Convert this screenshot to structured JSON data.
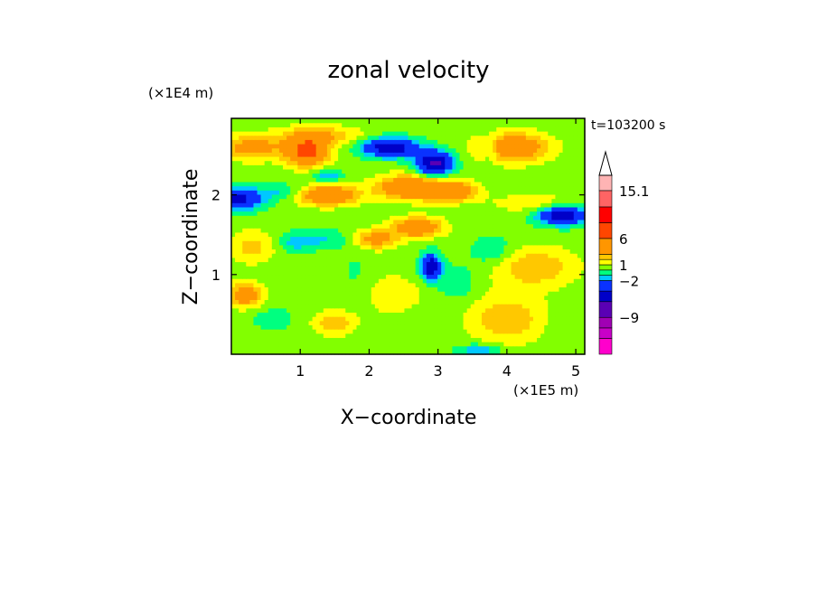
{
  "chart_data": {
    "type": "heatmap",
    "title": "zonal velocity",
    "xlabel": "X−coordinate",
    "ylabel": "Z−coordinate",
    "x_unit": "(×1E5 m)",
    "y_unit": "(×1E4 m)",
    "time_label": "t=103200 s",
    "xlim": [
      0,
      5.13
    ],
    "ylim": [
      0,
      2.96
    ],
    "x_ticks": [
      {
        "value": 1,
        "label": "1"
      },
      {
        "value": 2,
        "label": "2"
      },
      {
        "value": 3,
        "label": "3"
      },
      {
        "value": 4,
        "label": "4"
      },
      {
        "value": 5,
        "label": "5"
      }
    ],
    "y_ticks": [
      {
        "value": 1,
        "label": "1"
      },
      {
        "value": 2,
        "label": "2"
      }
    ],
    "colorbar": {
      "min": -16,
      "max": 18,
      "levels": [
        {
          "lo": -16,
          "hi": -13,
          "color": "#ff00cc"
        },
        {
          "lo": -13,
          "hi": -11,
          "color": "#c800c8"
        },
        {
          "lo": -11,
          "hi": -9,
          "color": "#a000b4"
        },
        {
          "lo": -9,
          "hi": -6,
          "color": "#5a00b4"
        },
        {
          "lo": -6,
          "hi": -4,
          "color": "#0000c8"
        },
        {
          "lo": -4,
          "hi": -2,
          "color": "#0a32ff"
        },
        {
          "lo": -2,
          "hi": -1,
          "color": "#00c8ff"
        },
        {
          "lo": -1,
          "hi": 0,
          "color": "#00ff80"
        },
        {
          "lo": 0,
          "hi": 1,
          "color": "#82ff00"
        },
        {
          "lo": 1,
          "hi": 2,
          "color": "#ffff00"
        },
        {
          "lo": 2,
          "hi": 3,
          "color": "#ffc800"
        },
        {
          "lo": 3,
          "hi": 6,
          "color": "#ff9600"
        },
        {
          "lo": 6,
          "hi": 9,
          "color": "#ff4600"
        },
        {
          "lo": 9,
          "hi": 12,
          "color": "#ff0000"
        },
        {
          "lo": 12,
          "hi": 15.1,
          "color": "#ff6464"
        },
        {
          "lo": 15.1,
          "hi": 18,
          "color": "#ffb4b4"
        }
      ],
      "labels": [
        {
          "value": 15.1,
          "label": "15.1"
        },
        {
          "value": 6,
          "label": "6"
        },
        {
          "value": 1,
          "label": "1"
        },
        {
          "value": -2,
          "label": "−2"
        },
        {
          "value": -9,
          "label": "−9"
        }
      ],
      "extend_max": true
    },
    "blobs": [
      {
        "x": 0.3,
        "z": 2.6,
        "rx": 0.45,
        "rz": 0.15,
        "v": 3.5
      },
      {
        "x": 1.1,
        "z": 2.55,
        "rx": 0.3,
        "rz": 0.18,
        "v": 6.5
      },
      {
        "x": 1.3,
        "z": 2.75,
        "rx": 0.6,
        "rz": 0.12,
        "v": 2.5
      },
      {
        "x": 0.1,
        "z": 1.95,
        "rx": 0.35,
        "rz": 0.13,
        "v": -5
      },
      {
        "x": 0.7,
        "z": 2.05,
        "rx": 0.35,
        "rz": 0.1,
        "v": -1.5
      },
      {
        "x": 2.3,
        "z": 2.6,
        "rx": 0.4,
        "rz": 0.12,
        "v": -6
      },
      {
        "x": 2.95,
        "z": 2.4,
        "rx": 0.25,
        "rz": 0.15,
        "v": -7
      },
      {
        "x": 1.4,
        "z": 2.0,
        "rx": 0.4,
        "rz": 0.12,
        "v": 5.5
      },
      {
        "x": 2.6,
        "z": 2.1,
        "rx": 0.5,
        "rz": 0.15,
        "v": 5
      },
      {
        "x": 3.2,
        "z": 2.05,
        "rx": 0.35,
        "rz": 0.12,
        "v": 4.5
      },
      {
        "x": 1.4,
        "z": 2.25,
        "rx": 0.2,
        "rz": 0.08,
        "v": -2.5
      },
      {
        "x": 4.8,
        "z": 1.75,
        "rx": 0.35,
        "rz": 0.12,
        "v": -6
      },
      {
        "x": 4.1,
        "z": 2.6,
        "rx": 0.5,
        "rz": 0.18,
        "v": 4.5
      },
      {
        "x": 3.75,
        "z": 2.6,
        "rx": 0.12,
        "rz": 0.15,
        "v": -2
      },
      {
        "x": 4.4,
        "z": 1.9,
        "rx": 0.6,
        "rz": 0.12,
        "v": 1.5
      },
      {
        "x": 0.3,
        "z": 1.35,
        "rx": 0.35,
        "rz": 0.2,
        "v": 2
      },
      {
        "x": 0.9,
        "z": 1.4,
        "rx": 0.25,
        "rz": 0.12,
        "v": -1.5
      },
      {
        "x": 1.3,
        "z": 1.45,
        "rx": 0.4,
        "rz": 0.12,
        "v": -1.5
      },
      {
        "x": 2.1,
        "z": 1.45,
        "rx": 0.3,
        "rz": 0.12,
        "v": 3.5
      },
      {
        "x": 2.7,
        "z": 1.6,
        "rx": 0.35,
        "rz": 0.12,
        "v": 5
      },
      {
        "x": 1.8,
        "z": 1.05,
        "rx": 0.25,
        "rz": 0.25,
        "v": -0.5
      },
      {
        "x": 2.9,
        "z": 1.1,
        "rx": 0.14,
        "rz": 0.16,
        "v": -6
      },
      {
        "x": 2.65,
        "z": 0.75,
        "rx": 0.25,
        "rz": 0.2,
        "v": 0.5
      },
      {
        "x": 3.3,
        "z": 0.9,
        "rx": 0.3,
        "rz": 0.25,
        "v": -1
      },
      {
        "x": 3.8,
        "z": 1.3,
        "rx": 0.3,
        "rz": 0.18,
        "v": -1.5
      },
      {
        "x": 4.4,
        "z": 1.1,
        "rx": 0.6,
        "rz": 0.25,
        "v": 2.5
      },
      {
        "x": 4.0,
        "z": 0.45,
        "rx": 0.55,
        "rz": 0.3,
        "v": 2.5
      },
      {
        "x": 4.9,
        "z": 0.3,
        "rx": 0.35,
        "rz": 0.25,
        "v": -0.5
      },
      {
        "x": 0.6,
        "z": 0.45,
        "rx": 0.3,
        "rz": 0.15,
        "v": -1
      },
      {
        "x": 0.2,
        "z": 0.75,
        "rx": 0.25,
        "rz": 0.15,
        "v": 4
      },
      {
        "x": 2.3,
        "z": 0.75,
        "rx": 0.3,
        "rz": 0.25,
        "v": 1.5
      },
      {
        "x": 1.5,
        "z": 0.4,
        "rx": 0.3,
        "rz": 0.15,
        "v": 2.5
      },
      {
        "x": 3.6,
        "z": 0.05,
        "rx": 0.3,
        "rz": 0.08,
        "v": -2.5
      }
    ]
  }
}
